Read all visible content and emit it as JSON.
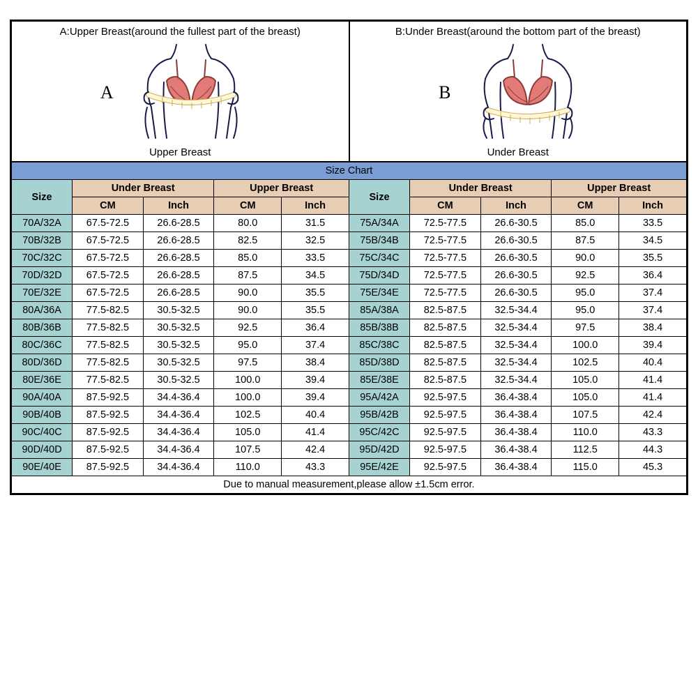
{
  "diagrams": {
    "a": {
      "title": "A:Upper Breast(around the fullest part of the breast)",
      "label": "A",
      "caption": "Upper Breast"
    },
    "b": {
      "title": "B:Under Breast(around the bottom part of the breast)",
      "label": "B",
      "caption": "Under Breast"
    }
  },
  "chart": {
    "title": "Size Chart",
    "headers": {
      "size": "Size",
      "under": "Under Breast",
      "upper": "Upper Breast",
      "cm": "CM",
      "inch": "Inch"
    },
    "note": "Due to manual measurement,please allow ±1.5cm error.",
    "colors": {
      "title_bg": "#7a9ed4",
      "size_bg": "#a7d2d2",
      "measure_bg": "#e7cdb4",
      "border": "#000000",
      "text": "#000000"
    },
    "fonts": {
      "body": "Comic Sans MS",
      "title_size_pt": 22,
      "cell_size_pt": 14.5
    },
    "rows": [
      {
        "l": {
          "size": "70A/32A",
          "ucm": "67.5-72.5",
          "uin": "26.6-28.5",
          "pcm": "80.0",
          "pin": "31.5"
        },
        "r": {
          "size": "75A/34A",
          "ucm": "72.5-77.5",
          "uin": "26.6-30.5",
          "pcm": "85.0",
          "pin": "33.5"
        }
      },
      {
        "l": {
          "size": "70B/32B",
          "ucm": "67.5-72.5",
          "uin": "26.6-28.5",
          "pcm": "82.5",
          "pin": "32.5"
        },
        "r": {
          "size": "75B/34B",
          "ucm": "72.5-77.5",
          "uin": "26.6-30.5",
          "pcm": "87.5",
          "pin": "34.5"
        }
      },
      {
        "l": {
          "size": "70C/32C",
          "ucm": "67.5-72.5",
          "uin": "26.6-28.5",
          "pcm": "85.0",
          "pin": "33.5"
        },
        "r": {
          "size": "75C/34C",
          "ucm": "72.5-77.5",
          "uin": "26.6-30.5",
          "pcm": "90.0",
          "pin": "35.5"
        }
      },
      {
        "l": {
          "size": "70D/32D",
          "ucm": "67.5-72.5",
          "uin": "26.6-28.5",
          "pcm": "87.5",
          "pin": "34.5"
        },
        "r": {
          "size": "75D/34D",
          "ucm": "72.5-77.5",
          "uin": "26.6-30.5",
          "pcm": "92.5",
          "pin": "36.4"
        }
      },
      {
        "l": {
          "size": "70E/32E",
          "ucm": "67.5-72.5",
          "uin": "26.6-28.5",
          "pcm": "90.0",
          "pin": "35.5"
        },
        "r": {
          "size": "75E/34E",
          "ucm": "72.5-77.5",
          "uin": "26.6-30.5",
          "pcm": "95.0",
          "pin": "37.4"
        }
      },
      {
        "l": {
          "size": "80A/36A",
          "ucm": "77.5-82.5",
          "uin": "30.5-32.5",
          "pcm": "90.0",
          "pin": "35.5"
        },
        "r": {
          "size": "85A/38A",
          "ucm": "82.5-87.5",
          "uin": "32.5-34.4",
          "pcm": "95.0",
          "pin": "37.4"
        }
      },
      {
        "l": {
          "size": "80B/36B",
          "ucm": "77.5-82.5",
          "uin": "30.5-32.5",
          "pcm": "92.5",
          "pin": "36.4"
        },
        "r": {
          "size": "85B/38B",
          "ucm": "82.5-87.5",
          "uin": "32.5-34.4",
          "pcm": "97.5",
          "pin": "38.4"
        }
      },
      {
        "l": {
          "size": "80C/36C",
          "ucm": "77.5-82.5",
          "uin": "30.5-32.5",
          "pcm": "95.0",
          "pin": "37.4"
        },
        "r": {
          "size": "85C/38C",
          "ucm": "82.5-87.5",
          "uin": "32.5-34.4",
          "pcm": "100.0",
          "pin": "39.4"
        }
      },
      {
        "l": {
          "size": "80D/36D",
          "ucm": "77.5-82.5",
          "uin": "30.5-32.5",
          "pcm": "97.5",
          "pin": "38.4"
        },
        "r": {
          "size": "85D/38D",
          "ucm": "82.5-87.5",
          "uin": "32.5-34.4",
          "pcm": "102.5",
          "pin": "40.4"
        }
      },
      {
        "l": {
          "size": "80E/36E",
          "ucm": "77.5-82.5",
          "uin": "30.5-32.5",
          "pcm": "100.0",
          "pin": "39.4"
        },
        "r": {
          "size": "85E/38E",
          "ucm": "82.5-87.5",
          "uin": "32.5-34.4",
          "pcm": "105.0",
          "pin": "41.4"
        }
      },
      {
        "l": {
          "size": "90A/40A",
          "ucm": "87.5-92.5",
          "uin": "34.4-36.4",
          "pcm": "100.0",
          "pin": "39.4"
        },
        "r": {
          "size": "95A/42A",
          "ucm": "92.5-97.5",
          "uin": "36.4-38.4",
          "pcm": "105.0",
          "pin": "41.4"
        }
      },
      {
        "l": {
          "size": "90B/40B",
          "ucm": "87.5-92.5",
          "uin": "34.4-36.4",
          "pcm": "102.5",
          "pin": "40.4"
        },
        "r": {
          "size": "95B/42B",
          "ucm": "92.5-97.5",
          "uin": "36.4-38.4",
          "pcm": "107.5",
          "pin": "42.4"
        }
      },
      {
        "l": {
          "size": "90C/40C",
          "ucm": "87.5-92.5",
          "uin": "34.4-36.4",
          "pcm": "105.0",
          "pin": "41.4"
        },
        "r": {
          "size": "95C/42C",
          "ucm": "92.5-97.5",
          "uin": "36.4-38.4",
          "pcm": "110.0",
          "pin": "43.3"
        }
      },
      {
        "l": {
          "size": "90D/40D",
          "ucm": "87.5-92.5",
          "uin": "34.4-36.4",
          "pcm": "107.5",
          "pin": "42.4"
        },
        "r": {
          "size": "95D/42D",
          "ucm": "92.5-97.5",
          "uin": "36.4-38.4",
          "pcm": "112.5",
          "pin": "44.3"
        }
      },
      {
        "l": {
          "size": "90E/40E",
          "ucm": "87.5-92.5",
          "uin": "34.4-36.4",
          "pcm": "110.0",
          "pin": "43.3"
        },
        "r": {
          "size": "95E/42E",
          "ucm": "92.5-97.5",
          "uin": "36.4-38.4",
          "pcm": "115.0",
          "pin": "45.3"
        }
      }
    ]
  },
  "illustration_colors": {
    "bra_fill": "#e27a77",
    "outline": "#1a1a4a",
    "tape": "#fff7d6",
    "tape_stroke": "#c9a94f"
  }
}
